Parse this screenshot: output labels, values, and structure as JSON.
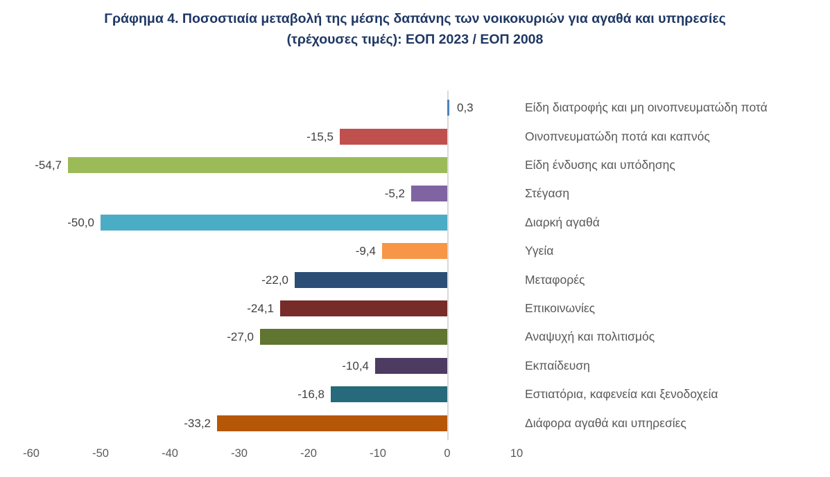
{
  "title": {
    "line1": "Γράφημα 4. Ποσοστιαία μεταβολή της μέσης δαπάνης των νοικοκυριών για αγαθά και υπηρεσίες",
    "line2": "(τρέχουσες τιμές): ΕΟΠ 2023 / ΕΟΠ 2008"
  },
  "colors": {
    "title": "#1f3864",
    "background": "#ffffff",
    "axis_line": "#d9d9d9",
    "value_label": "#404040",
    "category_label": "#595959",
    "tick_label": "#595959"
  },
  "chart_data": {
    "type": "bar",
    "orientation": "horizontal",
    "title": "Γράφημα 4. Ποσοστιαία μεταβολή της μέσης δαπάνης των νοικοκυριών για αγαθά και υπηρεσίες (τρέχουσες τιμές): ΕΟΠ 2023 / ΕΟΠ 2008",
    "categories": [
      "Είδη διατροφής και μη οινοπνευματώδη ποτά",
      "Οινοπνευματώδη ποτά και καπνός",
      "Είδη ένδυσης και υπόδησης",
      "Στέγαση",
      "Διαρκή αγαθά",
      "Υγεία",
      "Μεταφορές",
      "Επικοινωνίες",
      "Αναψυχή και πολιτισμός",
      "Εκπαίδευση",
      "Εστιατόρια, καφενεία  και ξενοδοχεία",
      "Διάφορα αγαθά και υπηρεσίες"
    ],
    "values": [
      0.3,
      -15.5,
      -54.7,
      -5.2,
      -50.0,
      -9.4,
      -22.0,
      -24.1,
      -27.0,
      -10.4,
      -16.8,
      -33.2
    ],
    "value_labels": [
      "0,3",
      "-15,5",
      "-54,7",
      "-5,2",
      "-50,0",
      "-9,4",
      "-22,0",
      "-24,1",
      "-27,0",
      "-10,4",
      "-16,8",
      "-33,2"
    ],
    "bar_colors": [
      "#4f81bd",
      "#c0504d",
      "#9bbb59",
      "#8064a2",
      "#4bacc6",
      "#f79646",
      "#2c4d75",
      "#772c2a",
      "#5f7530",
      "#4d3b62",
      "#276a7c",
      "#b65708"
    ],
    "xlabel": "",
    "ylabel": "",
    "xlim": [
      -60,
      10
    ],
    "x_ticks": [
      -60,
      -50,
      -40,
      -30,
      -20,
      -10,
      0,
      10
    ],
    "x_tick_labels": [
      "-60",
      "-50",
      "-40",
      "-30",
      "-20",
      "-10",
      "0",
      "10"
    ],
    "grid": "off",
    "legend": "none"
  }
}
